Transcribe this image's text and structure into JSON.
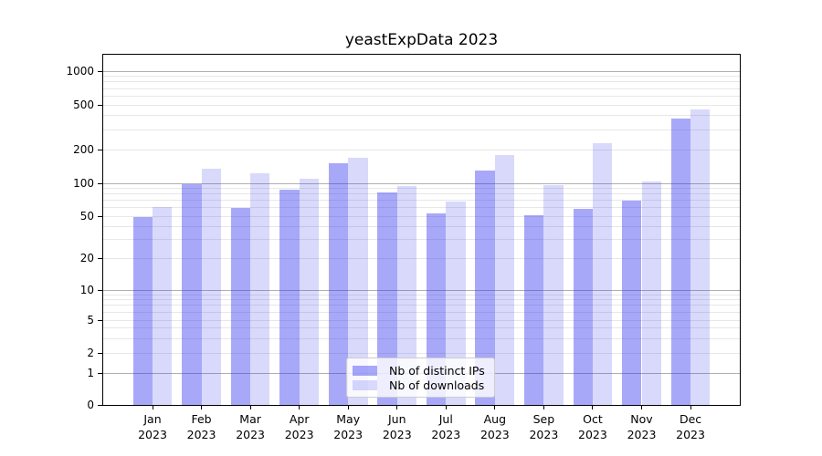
{
  "title": "yeastExpData 2023",
  "chart_data": {
    "type": "bar",
    "title": "yeastExpData 2023",
    "categories": [
      "Jan",
      "Feb",
      "Mar",
      "Apr",
      "May",
      "Jun",
      "Jul",
      "Aug",
      "Sep",
      "Oct",
      "Nov",
      "Dec"
    ],
    "category_year": "2023",
    "series": [
      {
        "name": "Nb of distinct IPs",
        "values": [
          49,
          98,
          59,
          87,
          150,
          82,
          53,
          131,
          51,
          58,
          70,
          380
        ]
      },
      {
        "name": "Nb of downloads",
        "values": [
          61,
          135,
          123,
          110,
          170,
          95,
          68,
          180,
          97,
          230,
          104,
          455
        ]
      }
    ],
    "y_axis": {
      "scale": "log-like (0,1,2,5 sequence)",
      "tick_values": [
        0,
        1,
        2,
        5,
        10,
        20,
        50,
        100,
        200,
        500,
        1000
      ],
      "tick_labels": [
        "0",
        "1",
        "2",
        "5",
        "10",
        "20",
        "50",
        "100",
        "200",
        "500",
        "1000"
      ],
      "major_grid_values": [
        1,
        10,
        100,
        1000
      ],
      "minor_grid_values": [
        2,
        3,
        4,
        5,
        6,
        7,
        8,
        9,
        20,
        30,
        40,
        50,
        60,
        70,
        80,
        90,
        200,
        300,
        400,
        500,
        600,
        700,
        800,
        900
      ],
      "ylim": [
        0,
        1400
      ]
    },
    "legend": {
      "position": "lower center",
      "entries": [
        "Nb of distinct IPs",
        "Nb of downloads"
      ]
    },
    "grid": true
  },
  "colors": {
    "bar_ips": "rgba(47, 47, 240, 0.42)",
    "bar_downloads": "rgba(47, 47, 240, 0.185)",
    "grid_major": "#b0b0b0",
    "grid_minor": "#e7e7e7",
    "spine": "#000000",
    "text": "#000000"
  }
}
